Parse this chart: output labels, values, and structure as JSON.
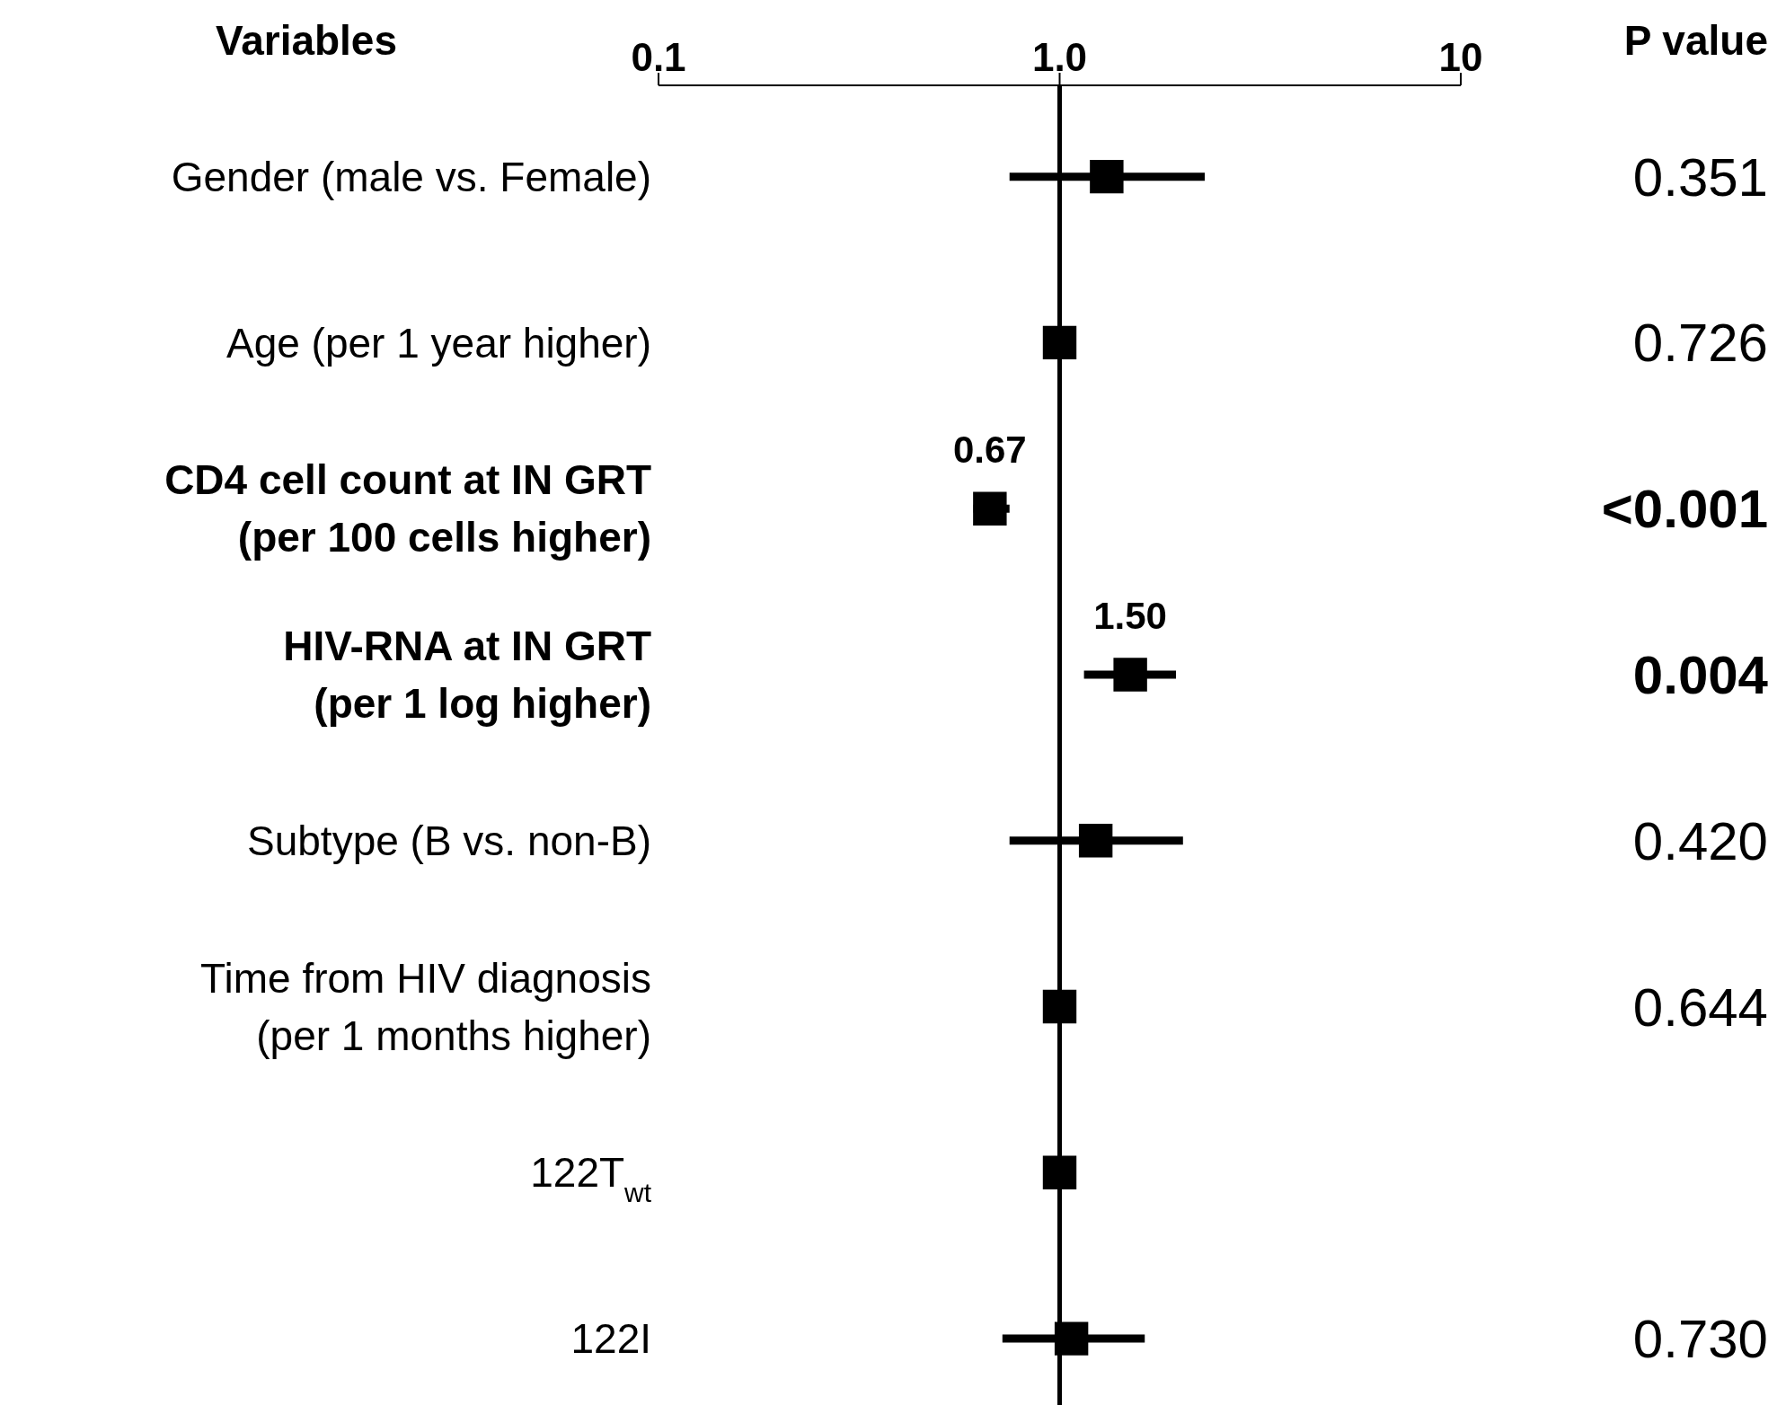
{
  "chart_data": {
    "type": "scatter",
    "orientation": "horizontal",
    "ylabel": "Variables",
    "y2label": "P value",
    "categories": [
      "Gender (male vs. Female)",
      "Age (per 1 year higher)",
      "CD4 cell count at IN GRT\n(per 100 cells higher)",
      "HIV-RNA at IN GRT\n(per 1 log higher)",
      "Subtype (B vs. non-B)",
      "Time from HIV diagnosis\n(per 1 months higher)",
      "122T$_{wt}$",
      "122I"
    ],
    "values": [
      1.31,
      1.0,
      0.67,
      1.5,
      1.23,
      1.0,
      1.0,
      1.07
    ],
    "errors": [
      [
        0.75,
        2.3
      ],
      null,
      [
        0.61,
        0.75
      ],
      [
        1.15,
        1.95
      ],
      [
        0.75,
        2.03
      ],
      null,
      null,
      [
        0.72,
        1.63
      ]
    ],
    "value_labels": [
      null,
      null,
      "0.67",
      "1.50",
      null,
      null,
      null,
      null
    ],
    "color": "#000000",
    "marker": "square",
    "log": "x",
    "xlim": [
      0.1,
      10
    ],
    "xticks": [
      {
        "value": 0.1,
        "label": "0.1"
      },
      {
        "value": 1,
        "label": "1.0"
      },
      {
        "value": 10,
        "label": "10"
      }
    ],
    "ref_lines": [
      {
        "axis": "x",
        "value": 1,
        "color": "#000000"
      }
    ],
    "annotations": [
      "0.351",
      "0.726",
      "<0.001",
      "0.004",
      "0.420",
      "0.644",
      "0.730"
    ]
  }
}
